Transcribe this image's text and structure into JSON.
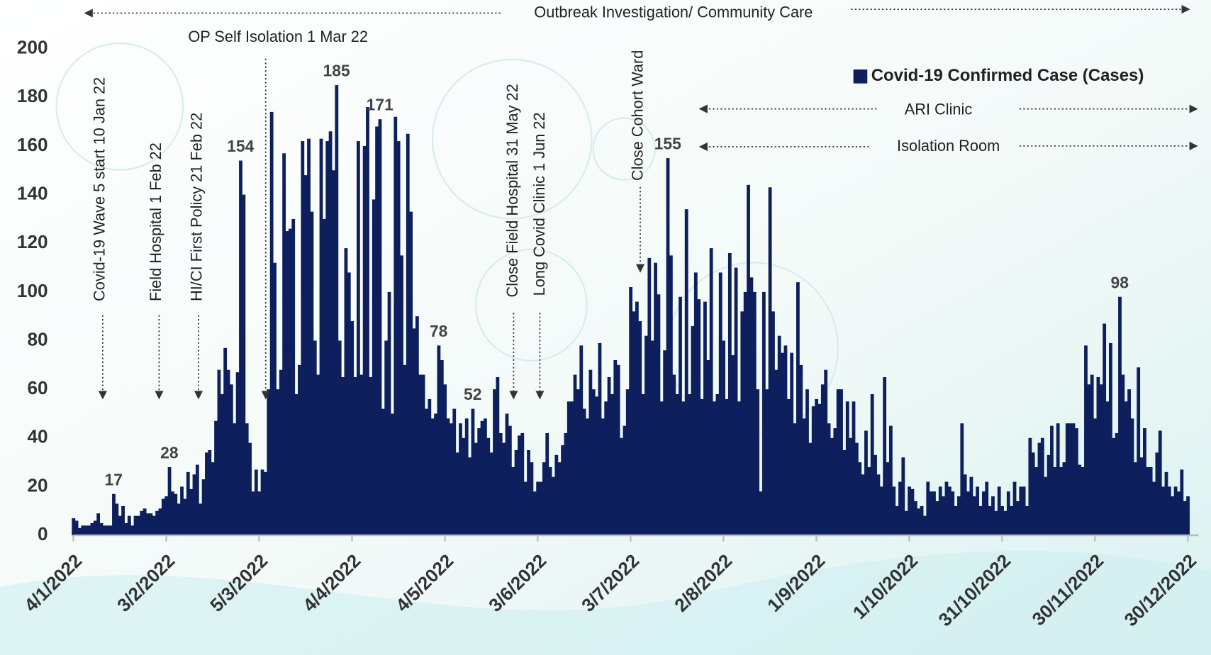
{
  "chart_data": {
    "type": "bar",
    "annotations": [
      "Outbreak Investigation/ Community Care",
      "OP Self Isolation 1 Mar 22",
      "Covid-19 Wave 5 start 10 Jan 22",
      "Field Hospital 1 Feb 22",
      "HI/CI First Policy 21 Feb 22",
      "Close Field Hospital 31 May 22",
      "Long Covid Clinic 1 Jun 22",
      "Close Cohort Ward",
      "ARI Clinic",
      "Isolation Room"
    ],
    "categories": [
      "4/1/2022",
      null,
      null,
      null,
      null,
      null,
      null,
      null,
      null,
      null,
      null,
      null,
      null,
      null,
      null,
      null,
      null,
      null,
      null,
      null,
      null,
      null,
      null,
      null,
      null,
      null,
      null,
      null,
      null,
      null,
      "3/2/2022",
      null,
      null,
      null,
      null,
      null,
      null,
      null,
      null,
      null,
      null,
      null,
      null,
      null,
      null,
      null,
      null,
      null,
      null,
      null,
      null,
      null,
      null,
      null,
      null,
      null,
      null,
      null,
      null,
      null,
      "5/3/2022",
      null,
      null,
      null,
      null,
      null,
      null,
      null,
      null,
      null,
      null,
      null,
      null,
      null,
      null,
      null,
      null,
      null,
      null,
      null,
      null,
      null,
      null,
      null,
      null,
      null,
      null,
      null,
      null,
      null,
      "4/4/2022",
      null,
      null,
      null,
      null,
      null,
      null,
      null,
      null,
      null,
      null,
      null,
      null,
      null,
      null,
      null,
      null,
      null,
      null,
      null,
      null,
      null,
      null,
      null,
      null,
      null,
      null,
      null,
      null,
      null,
      "4/5/2022",
      null,
      null,
      null,
      null,
      null,
      null,
      null,
      null,
      null,
      null,
      null,
      null,
      null,
      null,
      null,
      null,
      null,
      null,
      null,
      null,
      null,
      null,
      null,
      null,
      null,
      null,
      null,
      null,
      null,
      "3/6/2022",
      null,
      null,
      null,
      null,
      null,
      null,
      null,
      null,
      null,
      null,
      null,
      null,
      null,
      null,
      null,
      null,
      null,
      null,
      null,
      null,
      null,
      null,
      null,
      null,
      null,
      null,
      null,
      null,
      null,
      "3/7/2022",
      null,
      null,
      null,
      null,
      null,
      null,
      null,
      null,
      null,
      null,
      null,
      null,
      null,
      null,
      null,
      null,
      null,
      null,
      null,
      null,
      null,
      null,
      null,
      null,
      null,
      null,
      null,
      null,
      null,
      "2/8/2022",
      null,
      null,
      null,
      null,
      null,
      null,
      null,
      null,
      null,
      null,
      null,
      null,
      null,
      null,
      null,
      null,
      null,
      null,
      null,
      null,
      null,
      null,
      null,
      null,
      null,
      null,
      null,
      null,
      null,
      "1/9/2022",
      null,
      null,
      null,
      null,
      null,
      null,
      null,
      null,
      null,
      null,
      null,
      null,
      null,
      null,
      null,
      null,
      null,
      null,
      null,
      null,
      null,
      null,
      null,
      null,
      null,
      null,
      null,
      null,
      null,
      "1/10/2022",
      null,
      null,
      null,
      null,
      null,
      null,
      null,
      null,
      null,
      null,
      null,
      null,
      null,
      null,
      null,
      null,
      null,
      null,
      null,
      null,
      null,
      null,
      null,
      null,
      null,
      null,
      null,
      null,
      null,
      "31/10/2022",
      null,
      null,
      null,
      null,
      null,
      null,
      null,
      null,
      null,
      null,
      null,
      null,
      null,
      null,
      null,
      null,
      null,
      null,
      null,
      null,
      null,
      null,
      null,
      null,
      null,
      null,
      null,
      null,
      null,
      "30/11/2022",
      null,
      null,
      null,
      null,
      null,
      null,
      null,
      null,
      null,
      null,
      null,
      null,
      null,
      null,
      null,
      null,
      null,
      null,
      null,
      null,
      null,
      null,
      null,
      null,
      null,
      null,
      null,
      null,
      null,
      "30/12/2022"
    ],
    "series": [
      {
        "name": "Covid-19 Confirmed Case (Cases)",
        "color": "#0d1f5c",
        "values": [
          7,
          6,
          3,
          4,
          4,
          4,
          5,
          6,
          9,
          5,
          4,
          4,
          4,
          17,
          13,
          8,
          12,
          5,
          8,
          4,
          8,
          8,
          10,
          11,
          9,
          9,
          8,
          10,
          11,
          15,
          16,
          28,
          18,
          17,
          13,
          20,
          15,
          26,
          19,
          25,
          29,
          13,
          23,
          34,
          35,
          30,
          47,
          68,
          58,
          77,
          68,
          62,
          46,
          67,
          154,
          140,
          46,
          38,
          18,
          27,
          18,
          27,
          26,
          60,
          174,
          112,
          60,
          68,
          157,
          125,
          126,
          130,
          58,
          70,
          162,
          148,
          163,
          133,
          80,
          66,
          163,
          130,
          162,
          166,
          150,
          185,
          80,
          65,
          118,
          108,
          88,
          65,
          162,
          66,
          160,
          176,
          65,
          138,
          168,
          171,
          52,
          80,
          100,
          50,
          172,
          162,
          115,
          70,
          165,
          133,
          85,
          90,
          66,
          66,
          52,
          56,
          48,
          50,
          78,
          72,
          62,
          48,
          46,
          52,
          34,
          46,
          40,
          48,
          32,
          52,
          38,
          44,
          47,
          48,
          40,
          34,
          60,
          65,
          42,
          38,
          50,
          45,
          28,
          35,
          41,
          42,
          22,
          35,
          30,
          18,
          22,
          22,
          30,
          42,
          28,
          24,
          33,
          30,
          37,
          42,
          55,
          55,
          66,
          60,
          78,
          52,
          48,
          68,
          60,
          57,
          79,
          48,
          55,
          65,
          58,
          72,
          70,
          40,
          45,
          60,
          102,
          92,
          96,
          88,
          58,
          82,
          114,
          80,
          112,
          99,
          55,
          76,
          155,
          115,
          66,
          58,
          98,
          55,
          134,
          58,
          86,
          108,
          97,
          56,
          96,
          72,
          118,
          55,
          58,
          108,
          80,
          56,
          116,
          74,
          110,
          55,
          92,
          100,
          144,
          106,
          100,
          60,
          18,
          100,
          60,
          143,
          92,
          68,
          82,
          75,
          78,
          56,
          75,
          46,
          104,
          70,
          48,
          60,
          38,
          53,
          56,
          54,
          62,
          68,
          46,
          40,
          44,
          60,
          60,
          35,
          55,
          40,
          55,
          38,
          30,
          25,
          43,
          28,
          58,
          33,
          25,
          20,
          65,
          30,
          45,
          20,
          12,
          22,
          32,
          10,
          20,
          19,
          14,
          11,
          12,
          8,
          22,
          18,
          18,
          14,
          20,
          16,
          22,
          20,
          18,
          12,
          16,
          46,
          25,
          18,
          24,
          16,
          20,
          12,
          18,
          22,
          12,
          16,
          10,
          20,
          12,
          10,
          18,
          12,
          22,
          14,
          20,
          20,
          12,
          40,
          34,
          28,
          38,
          40,
          24,
          33,
          45,
          28,
          46,
          28,
          30,
          46,
          46,
          46,
          44,
          29,
          28,
          78,
          62,
          66,
          48,
          65,
          62,
          87,
          55,
          79,
          40,
          42,
          98,
          66,
          55,
          60,
          48,
          30,
          69,
          32,
          44,
          28,
          28,
          22,
          34,
          43,
          20,
          26,
          20,
          16,
          20,
          18,
          27,
          14,
          16
        ],
        "value_labels": [
          null,
          null,
          null,
          null,
          null,
          null,
          null,
          null,
          null,
          null,
          null,
          null,
          null,
          "17",
          null,
          null,
          null,
          null,
          null,
          null,
          null,
          null,
          null,
          null,
          null,
          null,
          null,
          null,
          null,
          null,
          null,
          "28",
          null,
          null,
          null,
          null,
          null,
          null,
          null,
          null,
          null,
          null,
          null,
          null,
          null,
          null,
          null,
          null,
          null,
          null,
          null,
          null,
          null,
          null,
          "154",
          null,
          null,
          null,
          null,
          null,
          null,
          null,
          null,
          null,
          null,
          null,
          null,
          null,
          null,
          null,
          null,
          null,
          null,
          null,
          null,
          null,
          null,
          null,
          null,
          null,
          null,
          null,
          null,
          null,
          null,
          "185",
          null,
          null,
          null,
          null,
          null,
          null,
          null,
          null,
          null,
          null,
          null,
          null,
          null,
          "171",
          null,
          null,
          null,
          null,
          null,
          null,
          null,
          null,
          null,
          null,
          null,
          null,
          null,
          null,
          null,
          null,
          null,
          null,
          "78",
          null,
          null,
          null,
          null,
          null,
          null,
          null,
          null,
          null,
          null,
          "52",
          null,
          null,
          null,
          null,
          null,
          null,
          null,
          null,
          null,
          null,
          null,
          null,
          null,
          null,
          null,
          null,
          null,
          null,
          null,
          null,
          null,
          null,
          null,
          null,
          null,
          null,
          null,
          null,
          null,
          null,
          null,
          null,
          null,
          null,
          null,
          null,
          null,
          null,
          null,
          null,
          null,
          null,
          null,
          null,
          null,
          null,
          null,
          null,
          null,
          null,
          null,
          null,
          null,
          null,
          null,
          null,
          null,
          null,
          null,
          null,
          null,
          null,
          "155",
          null,
          null,
          null,
          null,
          null,
          null,
          null,
          null,
          null,
          null,
          null,
          null,
          null,
          null,
          null,
          null,
          null,
          null,
          null,
          null,
          null,
          null,
          null,
          null,
          null,
          null,
          null,
          null,
          null,
          null,
          null,
          null,
          null,
          null,
          null,
          null,
          null,
          null,
          null,
          null,
          null,
          null,
          null,
          null,
          null,
          null,
          null,
          null,
          null,
          null,
          null,
          null,
          null,
          null,
          null,
          null,
          null,
          null,
          null,
          null,
          null,
          null,
          null,
          null,
          null,
          null,
          null,
          null,
          null,
          null,
          null,
          null,
          null,
          null,
          null,
          null,
          null,
          null,
          null,
          null,
          null,
          null,
          null,
          null,
          null,
          null,
          null,
          null,
          null,
          null,
          null,
          null,
          null,
          null,
          null,
          null,
          null,
          null,
          null,
          null,
          null,
          null,
          null,
          null,
          null,
          null,
          null,
          null,
          null,
          null,
          null,
          null,
          null,
          null,
          null,
          null,
          null,
          null,
          null,
          null,
          null,
          null,
          null,
          null,
          null,
          null,
          null,
          null,
          null,
          null,
          null,
          null,
          null,
          null,
          null,
          null,
          null,
          null,
          null,
          null,
          null,
          null,
          null,
          null,
          null,
          "98",
          null,
          null,
          null,
          null,
          null,
          null,
          null,
          null,
          null,
          null,
          null,
          null,
          null,
          null,
          null,
          null,
          null,
          null,
          null,
          null,
          null,
          null
        ]
      }
    ],
    "ylim": [
      0,
      200
    ],
    "yticks": [
      0,
      20,
      40,
      60,
      80,
      100,
      120,
      140,
      160,
      180,
      200
    ],
    "grid": false,
    "legend": "top-right"
  }
}
